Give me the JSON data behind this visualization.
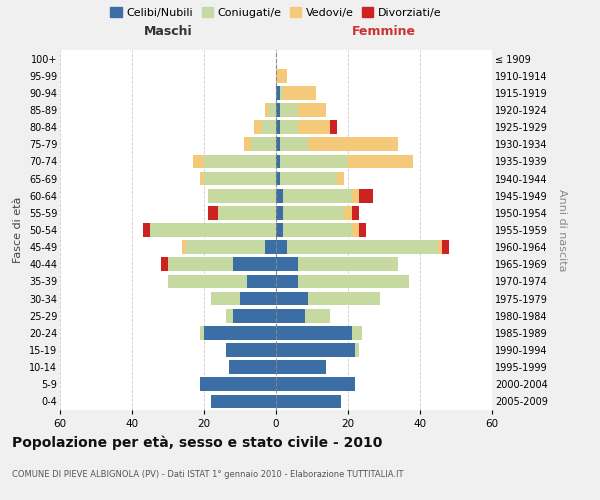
{
  "age_groups": [
    "0-4",
    "5-9",
    "10-14",
    "15-19",
    "20-24",
    "25-29",
    "30-34",
    "35-39",
    "40-44",
    "45-49",
    "50-54",
    "55-59",
    "60-64",
    "65-69",
    "70-74",
    "75-79",
    "80-84",
    "85-89",
    "90-94",
    "95-99",
    "100+"
  ],
  "birth_years": [
    "2005-2009",
    "2000-2004",
    "1995-1999",
    "1990-1994",
    "1985-1989",
    "1980-1984",
    "1975-1979",
    "1970-1974",
    "1965-1969",
    "1960-1964",
    "1955-1959",
    "1950-1954",
    "1945-1949",
    "1940-1944",
    "1935-1939",
    "1930-1934",
    "1925-1929",
    "1920-1924",
    "1915-1919",
    "1910-1914",
    "≤ 1909"
  ],
  "males": {
    "celibi": [
      18,
      21,
      13,
      14,
      20,
      12,
      10,
      8,
      12,
      3,
      0,
      0,
      0,
      0,
      0,
      0,
      0,
      0,
      0,
      0,
      0
    ],
    "coniugati": [
      0,
      0,
      0,
      0,
      1,
      2,
      8,
      22,
      18,
      22,
      35,
      16,
      19,
      20,
      20,
      7,
      4,
      2,
      0,
      0,
      0
    ],
    "vedovi": [
      0,
      0,
      0,
      0,
      0,
      0,
      0,
      0,
      0,
      1,
      0,
      0,
      0,
      1,
      3,
      2,
      2,
      1,
      0,
      0,
      0
    ],
    "divorziati": [
      0,
      0,
      0,
      0,
      0,
      0,
      0,
      0,
      2,
      0,
      2,
      3,
      0,
      0,
      0,
      0,
      0,
      0,
      0,
      0,
      0
    ]
  },
  "females": {
    "nubili": [
      18,
      22,
      14,
      22,
      21,
      8,
      9,
      6,
      6,
      3,
      2,
      2,
      2,
      1,
      1,
      1,
      1,
      1,
      1,
      0,
      0
    ],
    "coniugate": [
      0,
      0,
      0,
      1,
      3,
      7,
      20,
      31,
      28,
      42,
      19,
      17,
      19,
      16,
      19,
      8,
      5,
      5,
      1,
      0,
      0
    ],
    "vedove": [
      0,
      0,
      0,
      0,
      0,
      0,
      0,
      0,
      0,
      1,
      2,
      2,
      2,
      2,
      18,
      25,
      9,
      8,
      9,
      3,
      0
    ],
    "divorziate": [
      0,
      0,
      0,
      0,
      0,
      0,
      0,
      0,
      0,
      2,
      2,
      2,
      4,
      0,
      0,
      0,
      2,
      0,
      0,
      0,
      0
    ]
  },
  "colors": {
    "celibi_nubili": "#3a6ea5",
    "coniugati_e": "#c5d9a0",
    "vedovi_e": "#f5c97a",
    "divorziati_e": "#cc2222"
  },
  "title": "Popolazione per età, sesso e stato civile - 2010",
  "subtitle": "COMUNE DI PIEVE ALBIGNOLA (PV) - Dati ISTAT 1° gennaio 2010 - Elaborazione TUTTITALIA.IT",
  "xlabel_left": "Maschi",
  "xlabel_right": "Femmine",
  "ylabel_left": "Fasce di età",
  "ylabel_right": "Anni di nascita",
  "xlim": 60,
  "bg_color": "#f0f0f0",
  "plot_bg": "#ffffff",
  "legend_labels": [
    "Celibi/Nubili",
    "Coniugati/e",
    "Vedovi/e",
    "Divorziati/e"
  ]
}
